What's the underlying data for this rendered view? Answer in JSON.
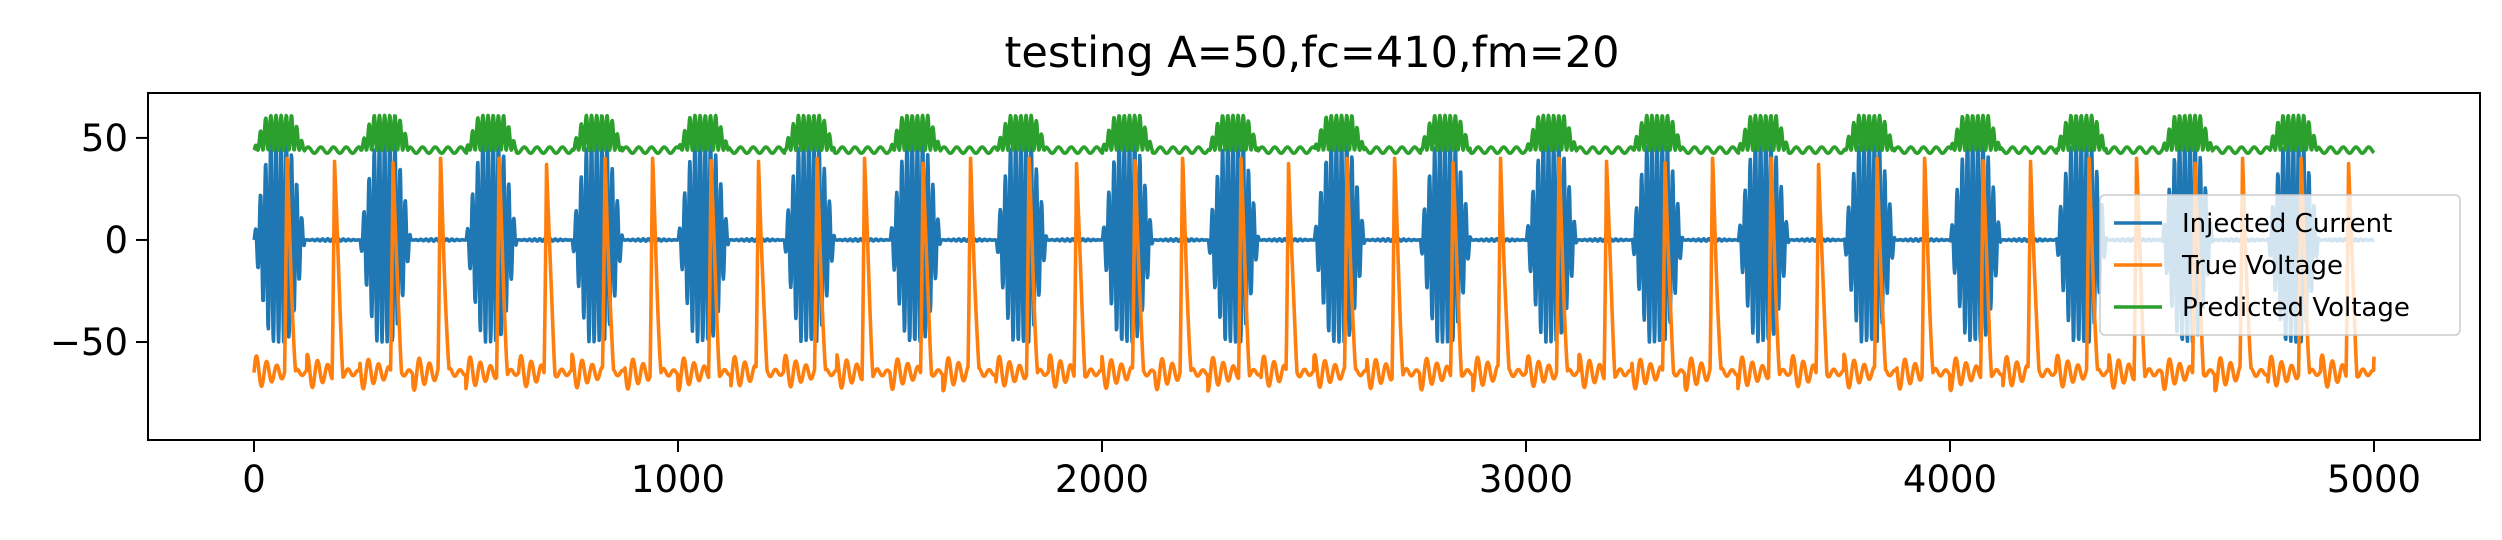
{
  "chart_data": {
    "type": "line",
    "title": "testing A=50,fc=410,fm=20",
    "xlabel": "",
    "ylabel": "",
    "xlim": [
      -250,
      5250
    ],
    "ylim": [
      -98,
      72
    ],
    "xticks": [
      0,
      1000,
      2000,
      3000,
      4000,
      5000
    ],
    "xtick_labels": [
      "0",
      "1000",
      "2000",
      "3000",
      "4000",
      "5000"
    ],
    "yticks": [
      50,
      0,
      -50
    ],
    "ytick_labels": [
      "50",
      "0",
      "−50"
    ],
    "grid": false,
    "legend_position": "center-right",
    "n_points": 5000,
    "modulation_period": 250,
    "series": [
      {
        "name": "Injected Current",
        "color": "#1f77b4",
        "description_of_values": "AM burst: amplitude 50 when modulation envelope active, near 0 otherwise; range about -50 to 50",
        "min": -50,
        "max": 50
      },
      {
        "name": "True Voltage",
        "color": "#ff7f0e",
        "description_of_values": "baseline about -65 with ringing, spikes up to about 40 once per burst",
        "min": -88,
        "max": 40
      },
      {
        "name": "Predicted Voltage",
        "color": "#2ca02c",
        "description_of_values": "baseline about 44, ripples up to about 62 during bursts",
        "min": 40,
        "max": 63
      }
    ]
  }
}
